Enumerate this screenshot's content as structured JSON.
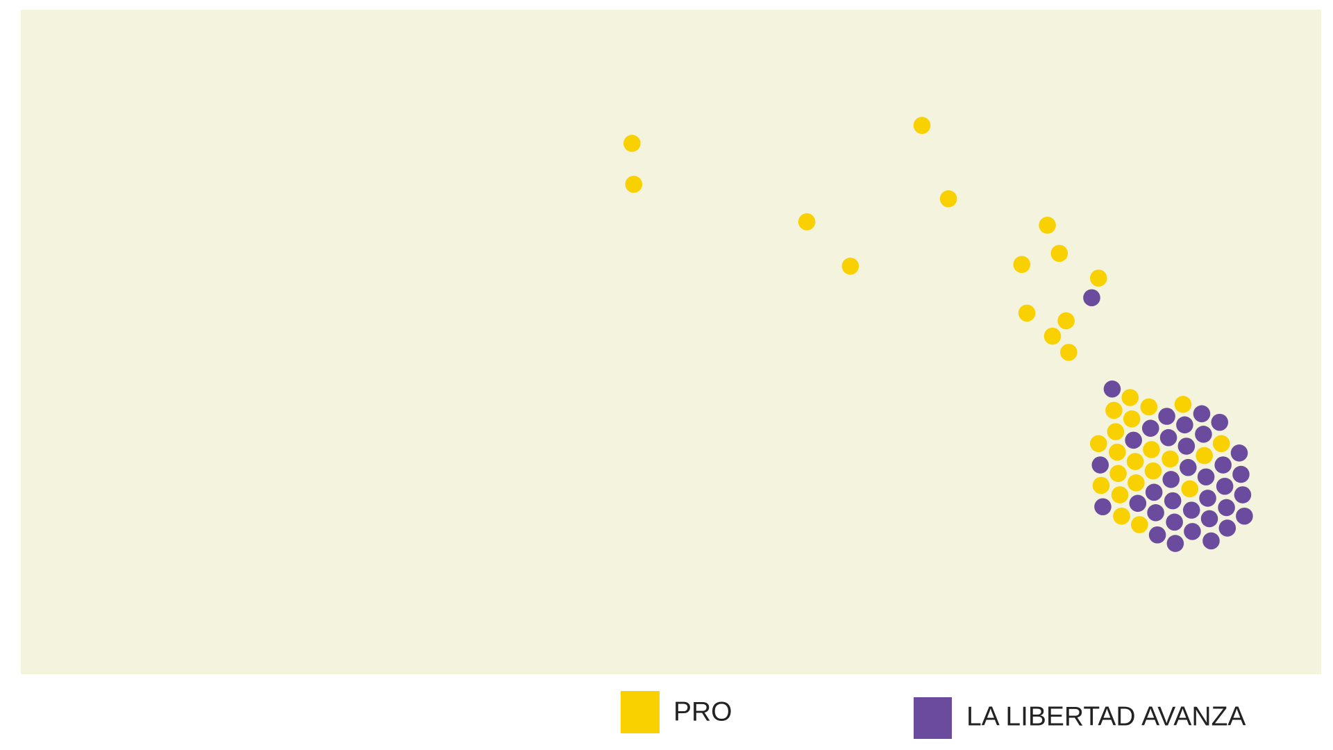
{
  "legend": [
    {
      "label": "PRO",
      "color": "#f9d000"
    },
    {
      "label": "LA LIBERTAD AVANZA",
      "color": "#6b4b9e"
    }
  ]
}
